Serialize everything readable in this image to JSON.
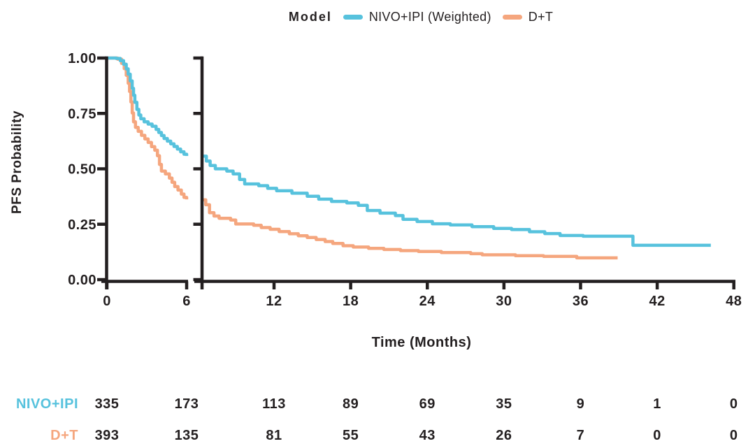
{
  "legend": {
    "title": "Model",
    "series": [
      {
        "label": "NIVO+IPI (Weighted)",
        "color": "#57c2dd"
      },
      {
        "label": "D+T",
        "color": "#f5a67e"
      }
    ]
  },
  "colors": {
    "axis": "#231f20",
    "text": "#231f20",
    "background": "#ffffff"
  },
  "chart_data": {
    "type": "line",
    "subtype": "kaplan-meier-step",
    "title": "",
    "xlabel": "Time (Months)",
    "ylabel": "PFS Probability",
    "ylim": [
      0,
      1
    ],
    "grid": false,
    "legend_position": "top-center",
    "y_tick_labels": [
      "1.00",
      "0.75",
      "0.50",
      "0.25",
      "0.00"
    ],
    "x_axis": {
      "break_between_months": [
        6,
        6.4
      ],
      "left_panel_ticks": [
        0,
        6
      ],
      "right_panel_ticks": [
        12,
        18,
        24,
        30,
        36,
        42,
        48
      ]
    },
    "series": [
      {
        "name": "NIVO+IPI (Weighted)",
        "color": "#57c2dd",
        "segments": [
          {
            "panel": "left",
            "points": [
              [
                0,
                1.0
              ],
              [
                0.7,
                0.998
              ],
              [
                1.0,
                0.988
              ],
              [
                1.25,
                0.972
              ],
              [
                1.45,
                0.951
              ],
              [
                1.6,
                0.927
              ],
              [
                1.75,
                0.897
              ],
              [
                1.9,
                0.863
              ],
              [
                2.0,
                0.832
              ],
              [
                2.1,
                0.8
              ],
              [
                2.25,
                0.768
              ],
              [
                2.4,
                0.743
              ],
              [
                2.55,
                0.726
              ],
              [
                2.8,
                0.712
              ],
              [
                3.1,
                0.702
              ],
              [
                3.4,
                0.692
              ],
              [
                3.7,
                0.678
              ],
              [
                3.9,
                0.664
              ],
              [
                4.1,
                0.65
              ],
              [
                4.3,
                0.637
              ],
              [
                4.55,
                0.625
              ],
              [
                4.8,
                0.613
              ],
              [
                5.05,
                0.601
              ],
              [
                5.3,
                0.589
              ],
              [
                5.55,
                0.577
              ],
              [
                5.8,
                0.566
              ],
              [
                6.0,
                0.558
              ]
            ]
          },
          {
            "panel": "right",
            "points": [
              [
                6.36,
                0.557
              ],
              [
                6.7,
                0.535
              ],
              [
                7.0,
                0.515
              ],
              [
                7.4,
                0.5
              ],
              [
                8.3,
                0.49
              ],
              [
                8.8,
                0.477
              ],
              [
                9.3,
                0.452
              ],
              [
                9.7,
                0.432
              ],
              [
                10.8,
                0.424
              ],
              [
                11.5,
                0.412
              ],
              [
                12.2,
                0.401
              ],
              [
                13.4,
                0.39
              ],
              [
                14.6,
                0.376
              ],
              [
                15.5,
                0.363
              ],
              [
                16.5,
                0.353
              ],
              [
                17.7,
                0.346
              ],
              [
                18.6,
                0.335
              ],
              [
                19.3,
                0.312
              ],
              [
                20.3,
                0.3
              ],
              [
                21.5,
                0.289
              ],
              [
                22.1,
                0.272
              ],
              [
                23.2,
                0.262
              ],
              [
                24.4,
                0.252
              ],
              [
                25.8,
                0.247
              ],
              [
                27.5,
                0.239
              ],
              [
                29.2,
                0.231
              ],
              [
                30.6,
                0.226
              ],
              [
                32.0,
                0.216
              ],
              [
                33.2,
                0.208
              ],
              [
                34.4,
                0.199
              ],
              [
                36.2,
                0.196
              ],
              [
                40.1,
                0.155
              ],
              [
                46.2,
                0.155
              ]
            ]
          }
        ]
      },
      {
        "name": "D+T",
        "color": "#f5a67e",
        "segments": [
          {
            "panel": "left",
            "points": [
              [
                0,
                1.0
              ],
              [
                0.8,
                0.995
              ],
              [
                1.1,
                0.976
              ],
              [
                1.3,
                0.952
              ],
              [
                1.45,
                0.922
              ],
              [
                1.6,
                0.886
              ],
              [
                1.7,
                0.849
              ],
              [
                1.8,
                0.802
              ],
              [
                1.9,
                0.752
              ],
              [
                2.0,
                0.712
              ],
              [
                2.15,
                0.687
              ],
              [
                2.35,
                0.669
              ],
              [
                2.6,
                0.651
              ],
              [
                2.85,
                0.635
              ],
              [
                3.1,
                0.619
              ],
              [
                3.35,
                0.6
              ],
              [
                3.6,
                0.584
              ],
              [
                3.8,
                0.559
              ],
              [
                3.95,
                0.52
              ],
              [
                4.1,
                0.49
              ],
              [
                4.4,
                0.477
              ],
              [
                4.7,
                0.458
              ],
              [
                4.9,
                0.439
              ],
              [
                5.1,
                0.42
              ],
              [
                5.35,
                0.404
              ],
              [
                5.6,
                0.386
              ],
              [
                5.8,
                0.371
              ],
              [
                6.0,
                0.362
              ]
            ]
          },
          {
            "panel": "right",
            "points": [
              [
                6.36,
                0.36
              ],
              [
                6.65,
                0.338
              ],
              [
                6.95,
                0.302
              ],
              [
                7.3,
                0.287
              ],
              [
                7.7,
                0.277
              ],
              [
                8.6,
                0.269
              ],
              [
                9.0,
                0.251
              ],
              [
                10.4,
                0.245
              ],
              [
                11.0,
                0.235
              ],
              [
                11.7,
                0.227
              ],
              [
                12.4,
                0.217
              ],
              [
                13.2,
                0.207
              ],
              [
                13.9,
                0.198
              ],
              [
                14.6,
                0.19
              ],
              [
                15.3,
                0.181
              ],
              [
                16.0,
                0.172
              ],
              [
                16.6,
                0.163
              ],
              [
                17.4,
                0.153
              ],
              [
                18.2,
                0.147
              ],
              [
                19.4,
                0.141
              ],
              [
                20.6,
                0.136
              ],
              [
                21.9,
                0.131
              ],
              [
                23.3,
                0.127
              ],
              [
                25.1,
                0.122
              ],
              [
                27.4,
                0.117
              ],
              [
                28.3,
                0.112
              ],
              [
                30.9,
                0.108
              ],
              [
                33.1,
                0.105
              ],
              [
                35.7,
                0.098
              ],
              [
                38.9,
                0.098
              ]
            ]
          }
        ]
      }
    ]
  },
  "risk_table": {
    "times": [
      0,
      6,
      12,
      18,
      24,
      30,
      36,
      42,
      48
    ],
    "rows": [
      {
        "label": "NIVO+IPI",
        "color": "#57c2dd",
        "values": [
          "335",
          "173",
          "113",
          "89",
          "69",
          "35",
          "9",
          "1",
          "0"
        ]
      },
      {
        "label": "D+T",
        "color": "#f5a67e",
        "values": [
          "393",
          "135",
          "81",
          "55",
          "43",
          "26",
          "7",
          "0",
          "0"
        ]
      }
    ]
  }
}
